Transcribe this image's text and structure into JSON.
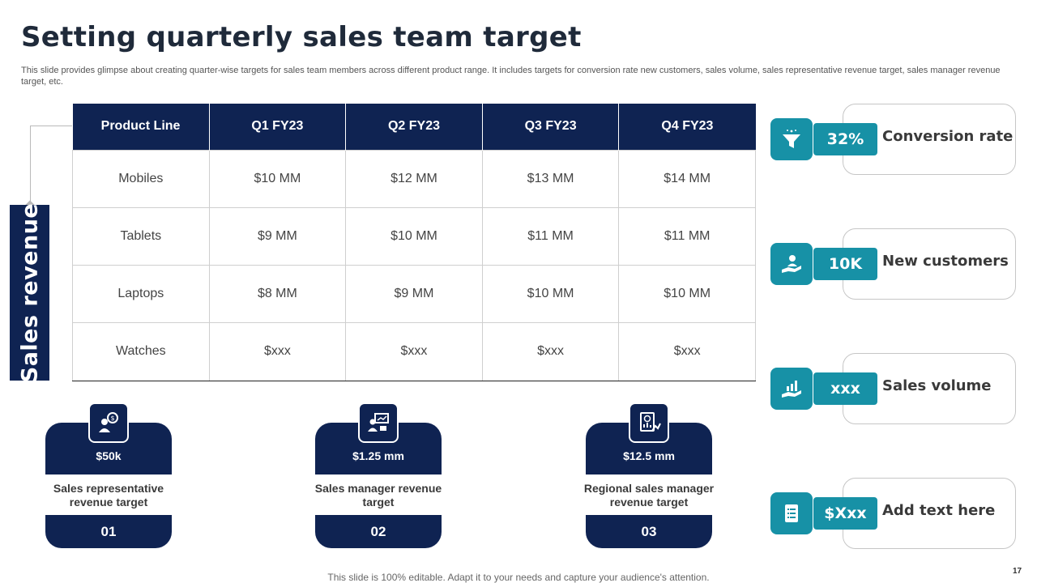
{
  "slide": {
    "title": "Setting quarterly sales team target",
    "subtitle": "This slide provides glimpse about creating quarter-wise targets for sales team members across different product range. It includes targets for conversion rate new customers, sales volume, sales representative revenue target, sales manager revenue target, etc.",
    "side_label": "Sales revenue",
    "footer": "This slide is 100% editable. Adapt it to your needs and capture your audience's attention.",
    "page_number": "17"
  },
  "table": {
    "headers": [
      "Product Line",
      "Q1 FY23",
      "Q2 FY23",
      "Q3 FY23",
      "Q4 FY23"
    ],
    "rows": [
      [
        "Mobiles",
        "$10 MM",
        "$12 MM",
        "$13 MM",
        "$14 MM"
      ],
      [
        "Tablets",
        "$9 MM",
        "$10 MM",
        "$11 MM",
        "$11 MM"
      ],
      [
        "Laptops",
        "$8 MM",
        "$9 MM",
        "$10 MM",
        "$10 MM"
      ],
      [
        "Watches",
        "$xxx",
        "$xxx",
        "$xxx",
        "$xxx"
      ]
    ]
  },
  "kpis": [
    {
      "value": "32%",
      "label": "Conversion rate",
      "icon": "funnel-icon"
    },
    {
      "value": "10K",
      "label": "New customers",
      "icon": "hand-person-icon"
    },
    {
      "value": "xxx",
      "label": "Sales volume",
      "icon": "hand-chart-icon"
    },
    {
      "value": "$Xxx",
      "label": "Add text here",
      "icon": "document-list-icon"
    }
  ],
  "targets": [
    {
      "amount": "$50k",
      "description": "Sales representative revenue target",
      "number": "01",
      "icon": "person-coin-icon"
    },
    {
      "amount": "$1.25 mm",
      "description": "Sales manager revenue target",
      "number": "02",
      "icon": "manager-presentation-icon"
    },
    {
      "amount": "$12.5 mm",
      "description": "Regional sales manager revenue target",
      "number": "03",
      "icon": "report-chart-icon"
    }
  ],
  "colors": {
    "navy": "#0f2352",
    "teal": "#1791a6"
  }
}
